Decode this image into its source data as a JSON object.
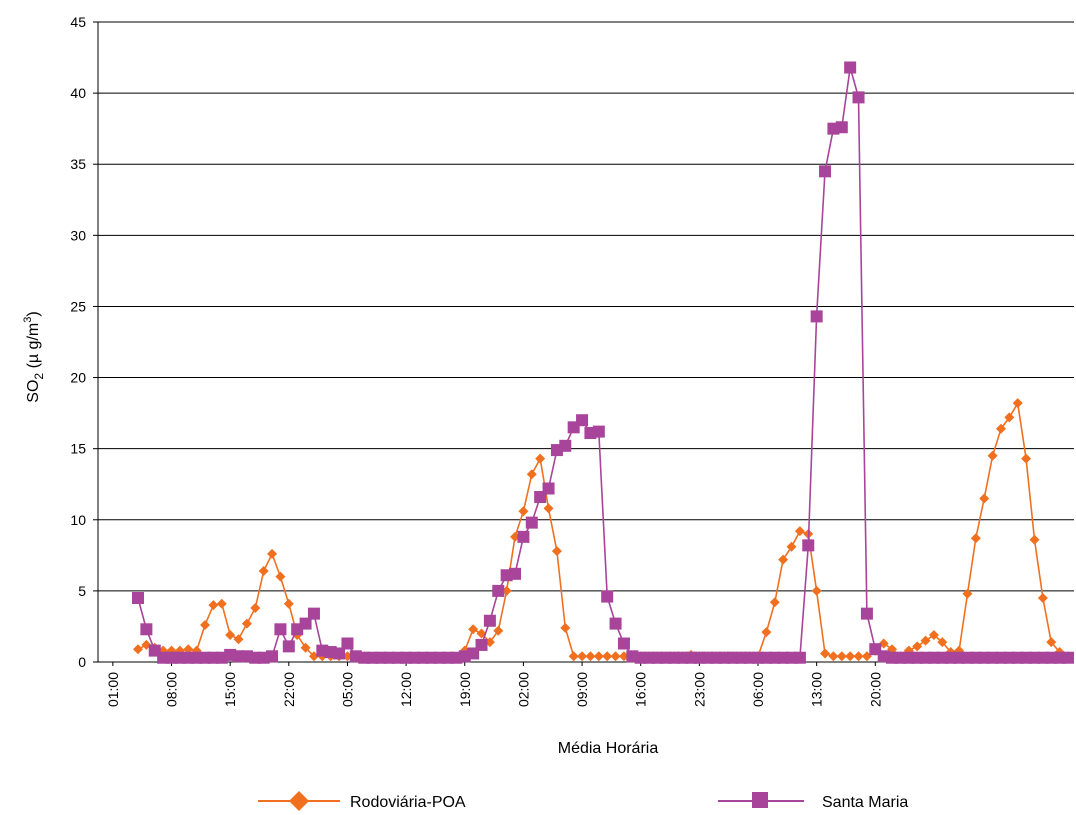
{
  "chart_data": {
    "type": "line",
    "xlabel": "Média Horária",
    "ylabel_main": "SO",
    "ylabel_sub": "2",
    "ylabel_rest": " (µ g/m",
    "ylabel_sup": "3",
    "ylabel_close": ")",
    "ylim": [
      0,
      45
    ],
    "yticks": [
      0,
      5,
      10,
      15,
      20,
      25,
      30,
      35,
      40,
      45
    ],
    "xticks": [
      "01:00",
      "08:00",
      "15:00",
      "22:00",
      "05:00",
      "12:00",
      "19:00",
      "02:00",
      "09:00",
      "16:00",
      "23:00",
      "06:00",
      "13:00",
      "20:00"
    ],
    "grid": "horizontal",
    "legend_position": "bottom",
    "series": [
      {
        "name": "Rodoviária-POA",
        "color": "#F07020",
        "marker": "diamond",
        "values": [
          0.9,
          1.2,
          1.0,
          0.8,
          0.8,
          0.8,
          0.9,
          0.8,
          2.6,
          4.0,
          4.1,
          1.9,
          1.6,
          2.7,
          3.8,
          6.4,
          7.6,
          6.0,
          4.1,
          1.9,
          1.0,
          0.4,
          0.4,
          0.4,
          0.4,
          0.4,
          0.4,
          0.4,
          0.3,
          0.3,
          0.3,
          0.3,
          0.3,
          0.3,
          0.3,
          0.3,
          0.3,
          0.3,
          0.3,
          0.8,
          2.3,
          2.0,
          1.4,
          2.2,
          5.0,
          8.8,
          10.6,
          13.2,
          14.3,
          10.8,
          7.8,
          2.4,
          0.4,
          0.4,
          0.4,
          0.4,
          0.4,
          0.4,
          0.4,
          0.4,
          0.4,
          0.4,
          0.4,
          0.4,
          0.4,
          0.4,
          0.5,
          0.4,
          0.4,
          0.4,
          0.4,
          0.4,
          0.4,
          0.4,
          0.4,
          2.1,
          4.2,
          7.2,
          8.1,
          9.2,
          9.0,
          5.0,
          0.6,
          0.4,
          0.4,
          0.4,
          0.4,
          0.4,
          0.8,
          1.3,
          0.9,
          0.4,
          0.8,
          1.1,
          1.5,
          1.9,
          1.4,
          0.7,
          0.8,
          4.8,
          8.7,
          11.5,
          14.5,
          16.4,
          17.2,
          18.2,
          14.3,
          8.6,
          4.5,
          1.4,
          0.7,
          0.4
        ]
      },
      {
        "name": "Santa Maria",
        "color": "#A8449A",
        "marker": "square",
        "values": [
          4.5,
          2.3,
          0.8,
          0.3,
          0.3,
          0.3,
          0.3,
          0.3,
          0.3,
          0.3,
          0.3,
          0.5,
          0.4,
          0.4,
          0.3,
          0.3,
          0.4,
          2.3,
          1.1,
          2.3,
          2.7,
          3.4,
          0.8,
          0.7,
          0.6,
          1.3,
          0.4,
          0.3,
          0.3,
          0.3,
          0.3,
          0.3,
          0.3,
          0.3,
          0.3,
          0.3,
          0.3,
          0.3,
          0.3,
          0.4,
          0.6,
          1.2,
          2.9,
          5.0,
          6.1,
          6.2,
          8.8,
          9.8,
          11.6,
          12.2,
          14.9,
          15.2,
          16.5,
          17.0,
          16.1,
          16.2,
          4.6,
          2.7,
          1.3,
          0.4,
          0.3,
          0.3,
          0.3,
          0.3,
          0.3,
          0.3,
          0.3,
          0.3,
          0.3,
          0.3,
          0.3,
          0.3,
          0.3,
          0.3,
          0.3,
          0.3,
          0.3,
          0.3,
          0.3,
          0.3,
          8.2,
          24.3,
          34.5,
          37.5,
          37.6,
          41.8,
          39.7,
          3.4,
          0.9,
          0.4,
          0.3,
          0.3,
          0.3,
          0.3,
          0.3,
          0.3,
          0.3,
          0.3,
          0.3,
          0.3,
          0.3,
          0.3,
          0.3,
          0.3,
          0.3,
          0.3,
          0.3,
          0.3,
          0.3,
          0.3,
          0.3,
          0.3
        ]
      }
    ]
  }
}
